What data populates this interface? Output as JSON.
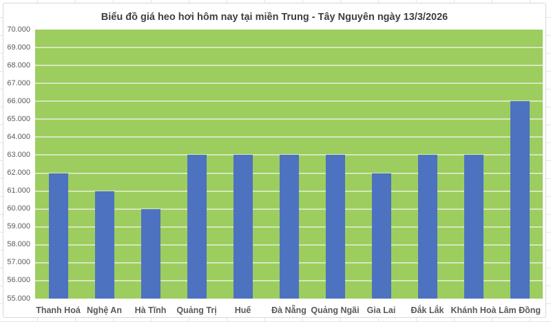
{
  "chart_data": {
    "type": "bar",
    "title": "Biểu đồ giá heo hơi hôm nay tại miền Trung - Tây Nguyên ngày 13/3/2026",
    "categories": [
      "Thanh Hoá",
      "Nghệ An",
      "Hà Tĩnh",
      "Quảng Trị",
      "Huế",
      "Đà Nẵng",
      "Quảng Ngãi",
      "Gia Lai",
      "Đắk Lắk",
      "Khánh Hoà",
      "Lâm Đồng"
    ],
    "values": [
      62000,
      61000,
      60000,
      63000,
      63000,
      63000,
      63000,
      62000,
      63000,
      63000,
      66000
    ],
    "xlabel": "",
    "ylabel": "",
    "ylim": [
      55000,
      70000
    ],
    "y_tick_interval": 1000,
    "y_ticks_top_to_bottom": [
      "70.000",
      "69.000",
      "68.000",
      "67.000",
      "66.000",
      "65.000",
      "64.000",
      "63.000",
      "62.000",
      "61.000",
      "60.000",
      "59.000",
      "58.000",
      "57.000",
      "56.000",
      "55.000"
    ],
    "grid": "horizontal gridlines on",
    "legend": "none",
    "colors": {
      "bar_fill": "#4c72c0",
      "plot_background": "#9ccd5e",
      "gridline": "#d6e7bd",
      "title_text": "#3f3f3f",
      "axis_text": "#595959",
      "chart_border": "#d7d7d7",
      "chart_background": "#ffffff"
    }
  }
}
